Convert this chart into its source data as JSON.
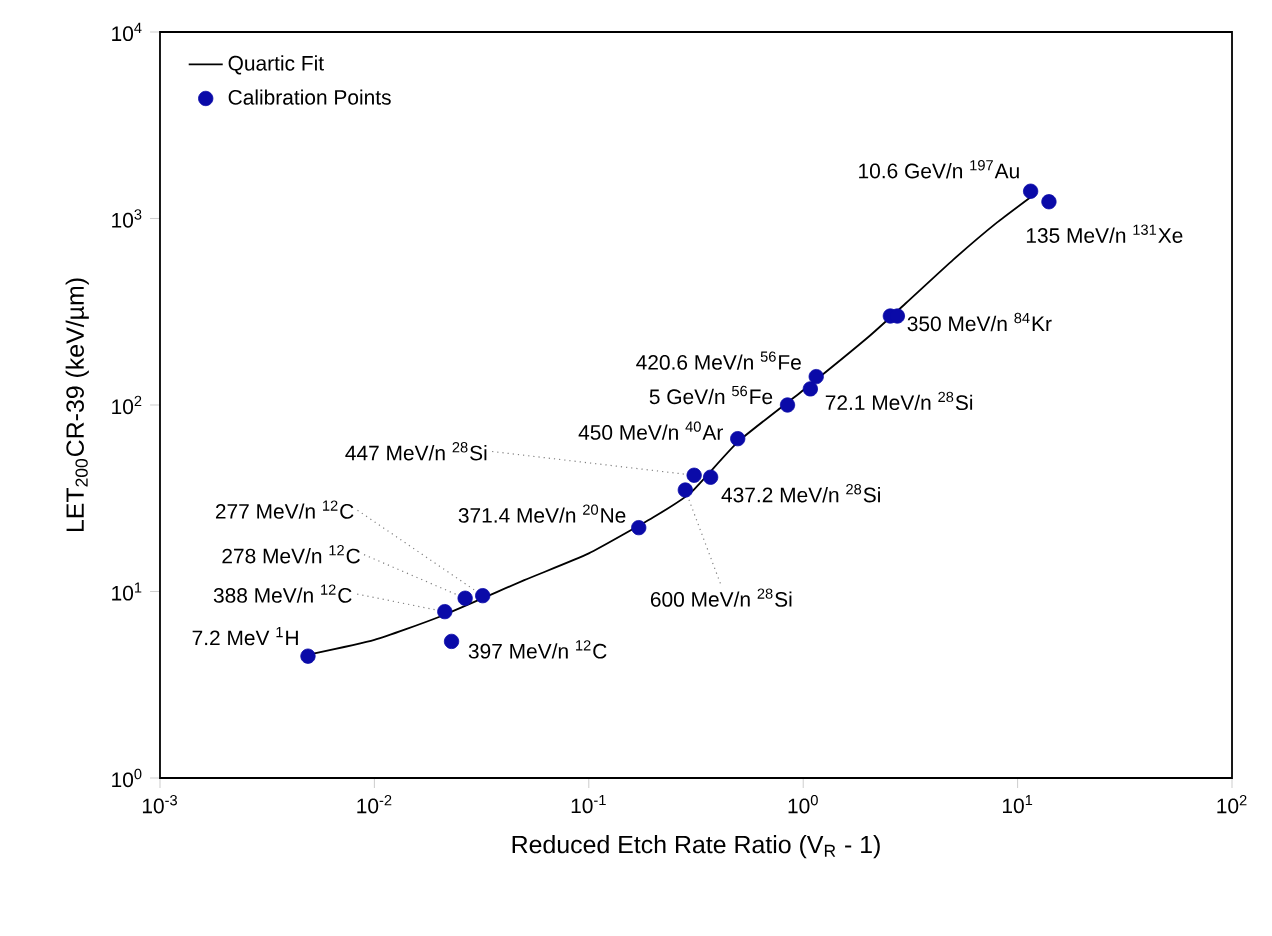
{
  "chart_data": {
    "type": "scatter",
    "xlabel": "Reduced Etch Rate Ratio (V$_{R}$ - 1)",
    "ylabel": "LET$_{200}$CR-39 (keV/µm)",
    "log": "xy",
    "legend": "top left",
    "grid": false,
    "xlim": [
      0.001,
      100
    ],
    "ylim": [
      1,
      10000
    ],
    "xticks": [
      {
        "value": 0.001,
        "label": "10$^{-3}$"
      },
      {
        "value": 0.01,
        "label": "10$^{-2}$"
      },
      {
        "value": 0.1,
        "label": "10$^{-1}$"
      },
      {
        "value": 1,
        "label": "10$^{0}$"
      },
      {
        "value": 10,
        "label": "10$^{1}$"
      },
      {
        "value": 100,
        "label": "10$^{2}$"
      }
    ],
    "yticks": [
      {
        "value": 1,
        "label": "10$^{0}$"
      },
      {
        "value": 10,
        "label": "10$^{1}$"
      },
      {
        "value": 100,
        "label": "10$^{2}$"
      },
      {
        "value": 1000,
        "label": "10$^{3}$"
      },
      {
        "value": 10000,
        "label": "10$^{4}$"
      }
    ],
    "series": [
      {
        "name": "Quartic Fit",
        "type": "line",
        "color": "#000000",
        "marker": "none",
        "line_style": "solid",
        "x": [
          0.005,
          0.01,
          0.02,
          0.05,
          0.1,
          0.2,
          0.3,
          0.5,
          1,
          2,
          3,
          5,
          8,
          12
        ],
        "values": [
          4.6,
          5.5,
          7.3,
          11.5,
          16,
          25,
          34,
          64,
          120,
          230,
          350,
          600,
          950,
          1350
        ]
      },
      {
        "name": "Calibration Points",
        "type": "scatter",
        "color": "#0a0aa8",
        "marker": "circle",
        "x": [
          0.0049,
          0.0229,
          0.0213,
          0.0265,
          0.032,
          0.171,
          0.282,
          0.31,
          0.37,
          0.495,
          0.845,
          1.08,
          1.15,
          2.55,
          2.75,
          14.0,
          11.5
        ],
        "values": [
          4.5,
          5.4,
          7.8,
          9.2,
          9.5,
          22,
          35,
          42,
          41,
          66,
          100,
          122,
          142,
          300,
          300,
          1230,
          1400
        ]
      }
    ],
    "annotations": [
      {
        "text": "7.2 MeV $^{1}$H",
        "x": 0.0049,
        "y": 4.5
      },
      {
        "text": "397 MeV/n $^{12}$C",
        "x": 0.0229,
        "y": 5.4
      },
      {
        "text": "388 MeV/n $^{12}$C",
        "x": 0.0213,
        "y": 7.8
      },
      {
        "text": "278 MeV/n $^{12}$C",
        "x": 0.0265,
        "y": 9.2
      },
      {
        "text": "277 MeV/n $^{12}$C",
        "x": 0.032,
        "y": 9.5
      },
      {
        "text": "371.4 MeV/n $^{20}$Ne",
        "x": 0.171,
        "y": 22
      },
      {
        "text": "600 MeV/n $^{28}$Si",
        "x": 0.282,
        "y": 35
      },
      {
        "text": "447 MeV/n $^{28}$Si",
        "x": 0.31,
        "y": 42
      },
      {
        "text": "437.2 MeV/n $^{28}$Si",
        "x": 0.37,
        "y": 41
      },
      {
        "text": "450 MeV/n $^{40}$Ar",
        "x": 0.495,
        "y": 66
      },
      {
        "text": "5 GeV/n $^{56}$Fe",
        "x": 0.845,
        "y": 100
      },
      {
        "text": "72.1 MeV/n $^{28}$Si",
        "x": 1.08,
        "y": 122
      },
      {
        "text": "420.6 MeV/n $^{56}$Fe",
        "x": 1.15,
        "y": 142
      },
      {
        "text": "350 MeV/n $^{84}$Kr",
        "x": 2.55,
        "y": 300
      },
      {
        "text": "135 MeV/n $^{131}$Xe",
        "x": 14.0,
        "y": 1230
      },
      {
        "text": "10.6 GeV/n $^{197}$Au",
        "x": 11.5,
        "y": 1400
      }
    ]
  }
}
